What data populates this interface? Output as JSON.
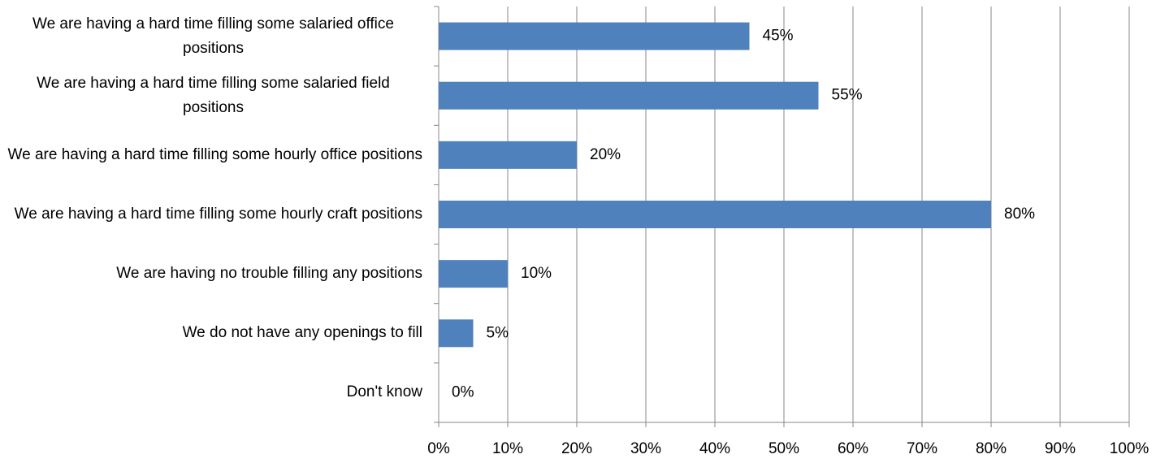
{
  "chart_data": {
    "type": "bar",
    "orientation": "horizontal",
    "categories": [
      "We are having a hard time filling some salaried office positions",
      "We are having a hard time filling some salaried field positions",
      "We are having a hard time filling some hourly office positions",
      "We are having a hard time filling some hourly craft positions",
      "We are having no trouble filling any positions",
      "We do not have any openings to fill",
      "Don't know"
    ],
    "values": [
      45,
      55,
      20,
      80,
      10,
      5,
      0
    ],
    "value_labels": [
      "45%",
      "55%",
      "20%",
      "80%",
      "10%",
      "5%",
      "0%"
    ],
    "color": "#4f81bd",
    "xlim": [
      0,
      100
    ],
    "xticks": [
      {
        "value": 0,
        "label": "0%"
      },
      {
        "value": 10,
        "label": "10%"
      },
      {
        "value": 20,
        "label": "20%"
      },
      {
        "value": 30,
        "label": "30%"
      },
      {
        "value": 40,
        "label": "40%"
      },
      {
        "value": 50,
        "label": "50%"
      },
      {
        "value": 60,
        "label": "60%"
      },
      {
        "value": 70,
        "label": "70%"
      },
      {
        "value": 80,
        "label": "80%"
      },
      {
        "value": 90,
        "label": "90%"
      },
      {
        "value": 100,
        "label": "100%"
      }
    ],
    "grid": true
  }
}
